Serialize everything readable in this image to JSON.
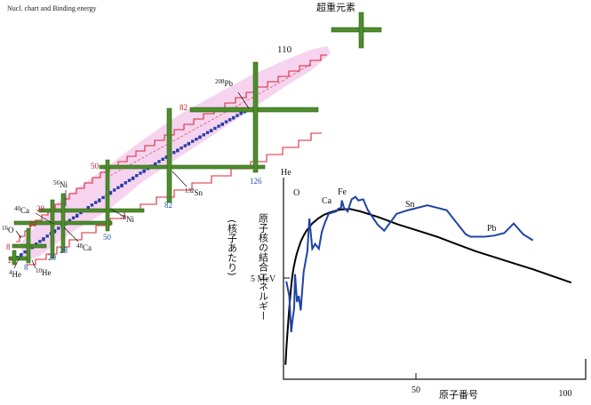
{
  "page_title": "Nucl. chart and Binding energy",
  "superheavy_label": "超重元素",
  "colors": {
    "magic_bar": "#4e8c2d",
    "magic_bar_edge": "#2f6418",
    "stable": "#2b3fa8",
    "drip_line": "#d8283a",
    "unstable_fill": "#f3c6ea",
    "magic_red": "#c8202c",
    "magic_blue": "#2155a8",
    "curve_data": "#1f43a6",
    "curve_fit": "#000000"
  },
  "nuclear_chart": {
    "proton_magic": [
      "2",
      "8",
      "20",
      "28",
      "50",
      "82"
    ],
    "neutron_magic": [
      "8",
      "20",
      "28",
      "50",
      "82",
      "126"
    ],
    "top_number": "110",
    "nuclides": [
      {
        "mass": "4",
        "symbol": "He"
      },
      {
        "mass": "10",
        "symbol": "He"
      },
      {
        "mass": "16",
        "symbol": "O"
      },
      {
        "mass": "40",
        "symbol": "Ca"
      },
      {
        "mass": "48",
        "symbol": "Ca"
      },
      {
        "mass": "56",
        "symbol": "Ni"
      },
      {
        "mass": "78",
        "symbol": "Ni"
      },
      {
        "mass": "132",
        "symbol": "Sn"
      },
      {
        "mass": "208",
        "symbol": "Pb"
      }
    ]
  },
  "chart_data": {
    "type": "line",
    "title": "",
    "ylabel": "原子核の結合エネルギー",
    "ylabel_sub": "(核子あたり)",
    "xlabel": "原子番号",
    "xlim": [
      0,
      105
    ],
    "x_ticks": [
      "50",
      "100"
    ],
    "y_tick_label": "5 MeV",
    "annotations": [
      "He",
      "O",
      "Ca",
      "Fe",
      "Sn",
      "Pb"
    ],
    "series": [
      {
        "x": [
          1,
          2,
          2.7,
          3,
          3.7,
          4,
          4.7,
          5.3,
          6,
          6.5,
          7,
          7.7,
          8.3,
          9,
          10,
          11,
          12.3,
          13.3,
          14.3,
          15.7,
          17,
          18.3,
          19,
          20,
          20.3,
          21,
          22.3,
          23.7,
          25,
          26,
          27.7,
          29.3,
          31,
          32.7,
          35,
          39.3,
          43.3,
          50,
          56.7,
          60,
          63.3,
          65,
          66.7,
          70,
          73.3,
          76.7,
          80,
          83.3,
          86.7
        ],
        "y": [
          8.1,
          6.9,
          3.9,
          4.6,
          5.9,
          8.7,
          6.4,
          6.9,
          5.7,
          7.3,
          8.9,
          9.8,
          10.6,
          13.3,
          10.8,
          11.2,
          10.8,
          12.2,
          12.9,
          13.7,
          13.8,
          13.9,
          14.1,
          14.2,
          14.8,
          14.2,
          13.9,
          14.9,
          15.1,
          14.8,
          14.9,
          14.0,
          13.4,
          12.8,
          12.3,
          13.7,
          14.0,
          14.4,
          14.0,
          13.0,
          12.0,
          11.8,
          11.8,
          11.8,
          11.9,
          12.1,
          12.9,
          12.0,
          11.5
        ]
      },
      {
        "x": [
          0.7,
          1,
          1.5,
          2,
          2.5,
          3,
          3.5,
          4,
          4.5,
          5,
          6,
          7,
          8,
          10,
          12,
          14,
          16,
          18,
          20,
          22,
          23,
          26.7,
          33.3,
          40,
          46.7,
          53.3,
          60,
          66.7,
          73.3,
          80,
          86.7,
          93.3,
          100
        ],
        "y": [
          1.2,
          2.5,
          4.3,
          5.9,
          7.3,
          8.4,
          9.2,
          9.8,
          10.3,
          10.7,
          11.4,
          11.9,
          12.3,
          12.9,
          13.3,
          13.6,
          13.8,
          13.95,
          14.05,
          14.08,
          14.1,
          13.9,
          13.4,
          12.8,
          12.3,
          11.8,
          11.2,
          10.6,
          10.1,
          9.6,
          9.1,
          8.55,
          8.0
        ]
      }
    ]
  }
}
